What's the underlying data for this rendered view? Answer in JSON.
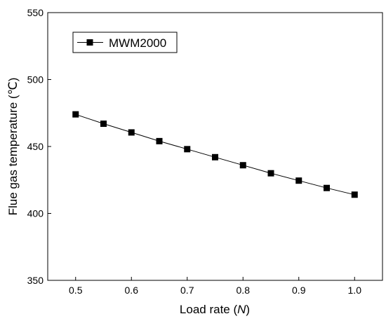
{
  "chart_data": {
    "type": "line",
    "title": "",
    "xlabel_prefix": "Load rate (",
    "xlabel_var": "N",
    "xlabel_suffix": ")",
    "ylabel": "Flue gas temperature (℃)",
    "xlim": [
      0.45,
      1.05
    ],
    "ylim": [
      350,
      550
    ],
    "xticks": [
      0.5,
      0.6,
      0.7,
      0.8,
      0.9,
      1.0
    ],
    "xtick_labels": [
      "0.5",
      "0.6",
      "0.7",
      "0.8",
      "0.9",
      "1.0"
    ],
    "yticks": [
      350,
      400,
      450,
      500,
      550
    ],
    "ytick_labels": [
      "350",
      "400",
      "450",
      "500",
      "550"
    ],
    "grid": false,
    "legend": {
      "placement": "top-left",
      "entries": [
        "MWM2000"
      ]
    },
    "series": [
      {
        "name": "MWM2000",
        "color": "#000000",
        "marker": "square",
        "x": [
          0.5,
          0.55,
          0.6,
          0.65,
          0.7,
          0.75,
          0.8,
          0.85,
          0.9,
          0.95,
          1.0
        ],
        "y": [
          474,
          467,
          460.5,
          454,
          448,
          442,
          436,
          430,
          424.5,
          419,
          414
        ]
      }
    ]
  }
}
